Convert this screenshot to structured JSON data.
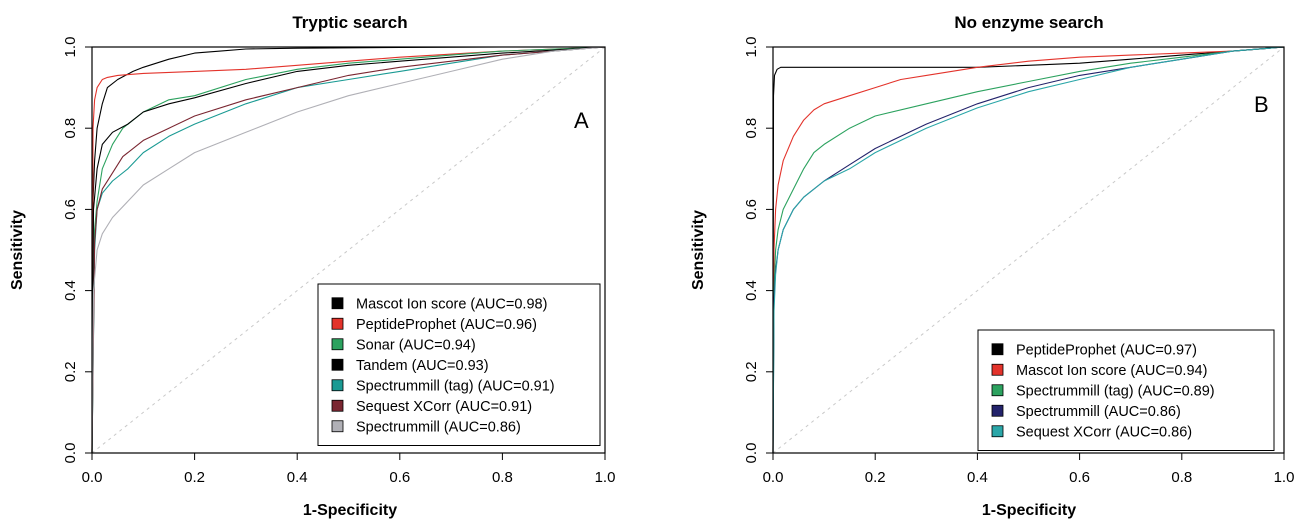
{
  "chart_data": [
    {
      "type": "line",
      "title": "Tryptic search",
      "xlabel": "1-Specificity",
      "ylabel": "Sensitivity",
      "xlim": [
        0,
        1
      ],
      "ylim": [
        0,
        1
      ],
      "xticks": [
        "0.0",
        "0.2",
        "0.4",
        "0.6",
        "0.8",
        "1.0"
      ],
      "yticks": [
        "0.0",
        "0.2",
        "0.4",
        "0.6",
        "0.8",
        "1.0"
      ],
      "panel_label": "A",
      "legend_position": "bottom-right",
      "diagonal_reference": true,
      "series": [
        {
          "name": "Mascot Ion score (AUC=0.98)",
          "color": "#000000",
          "x": [
            0,
            0.002,
            0.005,
            0.01,
            0.02,
            0.03,
            0.05,
            0.08,
            0.1,
            0.15,
            0.2,
            0.25,
            0.3,
            0.4,
            0.5,
            0.6,
            0.8,
            1.0
          ],
          "y": [
            0,
            0.62,
            0.72,
            0.8,
            0.86,
            0.9,
            0.92,
            0.94,
            0.95,
            0.97,
            0.985,
            0.99,
            0.995,
            0.997,
            0.998,
            0.999,
            1.0,
            1.0
          ]
        },
        {
          "name": "PeptideProphet (AUC=0.96)",
          "color": "#e3332b",
          "x": [
            0,
            0.002,
            0.005,
            0.01,
            0.02,
            0.03,
            0.05,
            0.1,
            0.2,
            0.3,
            0.4,
            0.5,
            0.6,
            0.8,
            1.0
          ],
          "y": [
            0,
            0.8,
            0.87,
            0.9,
            0.92,
            0.925,
            0.93,
            0.935,
            0.94,
            0.945,
            0.955,
            0.965,
            0.975,
            0.99,
            1.0
          ]
        },
        {
          "name": "Sonar (AUC=0.94)",
          "color": "#2ca25f",
          "x": [
            0,
            0.005,
            0.01,
            0.02,
            0.04,
            0.06,
            0.1,
            0.15,
            0.2,
            0.3,
            0.4,
            0.5,
            0.6,
            0.7,
            0.8,
            1.0
          ],
          "y": [
            0,
            0.55,
            0.62,
            0.7,
            0.76,
            0.8,
            0.84,
            0.87,
            0.88,
            0.92,
            0.945,
            0.96,
            0.97,
            0.98,
            0.99,
            1.0
          ]
        },
        {
          "name": "Tandem (AUC=0.93)",
          "color": "#000000",
          "x": [
            0,
            0.003,
            0.01,
            0.02,
            0.04,
            0.07,
            0.1,
            0.15,
            0.2,
            0.3,
            0.4,
            0.5,
            0.6,
            0.8,
            1.0
          ],
          "y": [
            0,
            0.6,
            0.7,
            0.76,
            0.79,
            0.81,
            0.84,
            0.86,
            0.875,
            0.91,
            0.94,
            0.955,
            0.965,
            0.985,
            1.0
          ]
        },
        {
          "name": "Spectrummill (tag) (AUC=0.91)",
          "color": "#1a9a93",
          "x": [
            0,
            0.005,
            0.01,
            0.02,
            0.04,
            0.07,
            0.1,
            0.15,
            0.2,
            0.3,
            0.4,
            0.5,
            0.6,
            0.7,
            0.8,
            1.0
          ],
          "y": [
            0,
            0.5,
            0.6,
            0.64,
            0.67,
            0.7,
            0.74,
            0.78,
            0.81,
            0.86,
            0.9,
            0.92,
            0.94,
            0.96,
            0.98,
            1.0
          ]
        },
        {
          "name": "Sequest XCorr (AUC=0.91)",
          "color": "#7a2631",
          "x": [
            0,
            0.005,
            0.01,
            0.02,
            0.04,
            0.06,
            0.1,
            0.15,
            0.2,
            0.3,
            0.4,
            0.5,
            0.6,
            0.8,
            1.0
          ],
          "y": [
            0,
            0.52,
            0.6,
            0.65,
            0.69,
            0.73,
            0.77,
            0.8,
            0.83,
            0.87,
            0.9,
            0.93,
            0.95,
            0.98,
            1.0
          ]
        },
        {
          "name": "Spectrummill (AUC=0.86)",
          "color": "#b0b0b6",
          "x": [
            0,
            0.003,
            0.01,
            0.02,
            0.04,
            0.07,
            0.1,
            0.15,
            0.2,
            0.3,
            0.4,
            0.5,
            0.6,
            0.7,
            0.8,
            0.9,
            1.0
          ],
          "y": [
            0,
            0.4,
            0.5,
            0.54,
            0.58,
            0.62,
            0.66,
            0.7,
            0.74,
            0.79,
            0.84,
            0.88,
            0.91,
            0.94,
            0.97,
            0.99,
            1.0
          ]
        }
      ]
    },
    {
      "type": "line",
      "title": "No enzyme search",
      "xlabel": "1-Specificity",
      "ylabel": "Sensitivity",
      "xlim": [
        0,
        1
      ],
      "ylim": [
        0,
        1
      ],
      "xticks": [
        "0.0",
        "0.2",
        "0.4",
        "0.6",
        "0.8",
        "1.0"
      ],
      "yticks": [
        "0.0",
        "0.2",
        "0.4",
        "0.6",
        "0.8",
        "1.0"
      ],
      "panel_label": "B",
      "legend_position": "bottom-right",
      "diagonal_reference": true,
      "series": [
        {
          "name": "PeptideProphet (AUC=0.97)",
          "color": "#000000",
          "x": [
            0,
            0.001,
            0.003,
            0.008,
            0.015,
            0.02,
            0.1,
            0.2,
            0.3,
            0.4,
            0.5,
            0.6,
            0.7,
            0.8,
            0.9,
            1.0
          ],
          "y": [
            0,
            0.88,
            0.93,
            0.945,
            0.95,
            0.95,
            0.95,
            0.95,
            0.95,
            0.95,
            0.955,
            0.96,
            0.97,
            0.98,
            0.99,
            1.0
          ]
        },
        {
          "name": "Mascot Ion score (AUC=0.94)",
          "color": "#e3332b",
          "x": [
            0,
            0.002,
            0.005,
            0.01,
            0.02,
            0.04,
            0.06,
            0.08,
            0.1,
            0.15,
            0.2,
            0.25,
            0.3,
            0.4,
            0.5,
            0.6,
            0.7,
            0.8,
            0.9,
            1.0
          ],
          "y": [
            0,
            0.5,
            0.6,
            0.66,
            0.72,
            0.78,
            0.82,
            0.845,
            0.86,
            0.88,
            0.9,
            0.92,
            0.93,
            0.95,
            0.965,
            0.975,
            0.98,
            0.985,
            0.99,
            1.0
          ]
        },
        {
          "name": "Spectrummill (tag) (AUC=0.89)",
          "color": "#2ca25f",
          "x": [
            0,
            0.002,
            0.005,
            0.01,
            0.02,
            0.04,
            0.06,
            0.08,
            0.1,
            0.15,
            0.2,
            0.3,
            0.4,
            0.5,
            0.6,
            0.7,
            0.8,
            0.9,
            1.0
          ],
          "y": [
            0,
            0.4,
            0.5,
            0.55,
            0.6,
            0.65,
            0.7,
            0.74,
            0.76,
            0.8,
            0.83,
            0.86,
            0.89,
            0.915,
            0.94,
            0.96,
            0.975,
            0.99,
            1.0
          ]
        },
        {
          "name": "Spectrummill (AUC=0.86)",
          "color": "#23236b",
          "x": [
            0,
            0.002,
            0.005,
            0.01,
            0.02,
            0.04,
            0.06,
            0.1,
            0.15,
            0.2,
            0.3,
            0.4,
            0.5,
            0.6,
            0.7,
            0.8,
            0.9,
            1.0
          ],
          "y": [
            0,
            0.38,
            0.45,
            0.5,
            0.55,
            0.6,
            0.63,
            0.67,
            0.71,
            0.75,
            0.81,
            0.86,
            0.9,
            0.93,
            0.95,
            0.97,
            0.99,
            1.0
          ]
        },
        {
          "name": "Sequest XCorr (AUC=0.86)",
          "color": "#2aa6a8",
          "x": [
            0,
            0.002,
            0.005,
            0.01,
            0.02,
            0.04,
            0.06,
            0.1,
            0.15,
            0.2,
            0.3,
            0.4,
            0.5,
            0.6,
            0.7,
            0.8,
            0.9,
            1.0
          ],
          "y": [
            0,
            0.35,
            0.44,
            0.5,
            0.55,
            0.6,
            0.63,
            0.67,
            0.7,
            0.74,
            0.8,
            0.85,
            0.89,
            0.92,
            0.95,
            0.97,
            0.99,
            1.0
          ]
        }
      ]
    }
  ]
}
